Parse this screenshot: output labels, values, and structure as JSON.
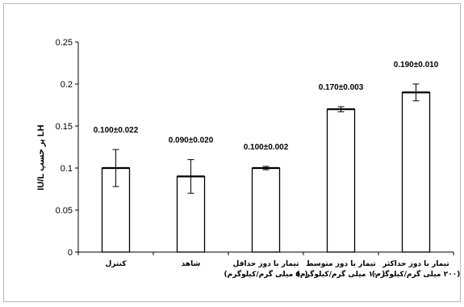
{
  "chart_data": {
    "type": "bar",
    "ylabel": "LH بر حسب IU/L",
    "ylim": [
      0,
      0.25
    ],
    "yticks": [
      "0",
      "0.05",
      "0.1",
      "0.15",
      "0.2",
      "0.25"
    ],
    "grid": false,
    "categories": [
      [
        "کنترل"
      ],
      [
        "شاهد"
      ],
      [
        "تیمار با دوز حداقل",
        "(۵۰ میلی گرم/کیلوگرم)"
      ],
      [
        "تیمار با دوز متوسط",
        "(۱۰۰ میلی گرم/کیلوگرم)"
      ],
      [
        "تیمار با دوز حداکثر",
        "(۲۰۰ میلی گرم/کیلوگرم)"
      ]
    ],
    "values": [
      0.1,
      0.09,
      0.1,
      0.17,
      0.19
    ],
    "errors": [
      0.022,
      0.02,
      0.002,
      0.003,
      0.01
    ],
    "data_labels": [
      "0.100±0.022",
      "0.090±0.020",
      "0.100±0.002",
      "0.170±0.003",
      "0.190±0.010"
    ]
  }
}
